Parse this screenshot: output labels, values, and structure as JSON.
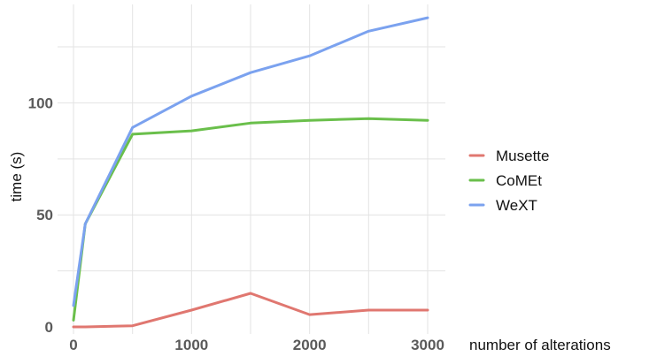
{
  "chart_data": {
    "type": "line",
    "xlabel": "number of alterations",
    "ylabel": "time (s)",
    "x_ticks": [
      0,
      1000,
      2000,
      3000
    ],
    "y_ticks": [
      0,
      50,
      100
    ],
    "x_tick_labels": [
      "0",
      "1000",
      "2000",
      "3000"
    ],
    "y_tick_labels": [
      "0",
      "50",
      "100"
    ],
    "xlim": [
      0,
      3000
    ],
    "ylim": [
      0,
      140
    ],
    "grid": true,
    "legend_position": "right",
    "series": [
      {
        "name": "Musette",
        "color": "#e07770",
        "x": [
          0,
          100,
          500,
          1000,
          1500,
          2000,
          2500,
          3000
        ],
        "y": [
          0,
          0,
          0.5,
          7.5,
          15,
          5.5,
          7.5,
          7.5
        ]
      },
      {
        "name": "CoMEt",
        "color": "#6abf4b",
        "x": [
          0,
          100,
          500,
          1000,
          1500,
          2000,
          2500,
          3000
        ],
        "y": [
          3,
          46,
          86,
          87.5,
          91,
          92.2,
          93,
          92.2
        ]
      },
      {
        "name": "WeXT",
        "color": "#7ba2ef",
        "x": [
          0,
          100,
          500,
          1000,
          1500,
          2000,
          2500,
          3000
        ],
        "y": [
          9.5,
          46,
          89,
          103,
          113.5,
          121,
          132,
          138
        ]
      }
    ]
  }
}
